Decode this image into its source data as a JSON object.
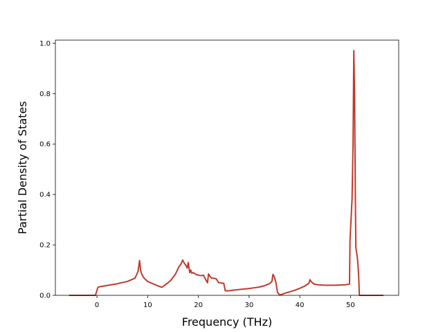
{
  "chart_data": {
    "type": "line",
    "title": "",
    "xlabel": "Frequency (THz)",
    "ylabel": "Partial Density of States",
    "xlim": [
      -8.2,
      59.5
    ],
    "ylim": [
      0,
      1.012
    ],
    "xticks": [
      0,
      10,
      20,
      30,
      40,
      50
    ],
    "yticks": [
      0.0,
      0.2,
      0.4,
      0.6,
      0.8,
      1.0
    ],
    "xtick_labels": [
      "0",
      "10",
      "20",
      "30",
      "40",
      "50"
    ],
    "ytick_labels": [
      "0.0",
      "0.2",
      "0.4",
      "0.6",
      "0.8",
      "1.0"
    ],
    "grid": false,
    "legend": "none",
    "series": [
      {
        "color": "#c0392b",
        "x": [
          -5.5,
          -0.3,
          0.0,
          0.2,
          0.5,
          2,
          4,
          6,
          7.5,
          8.1,
          8.4,
          8.6,
          8.8,
          9.3,
          10,
          11,
          12,
          12.5,
          12.8,
          13.5,
          14.5,
          15.5,
          16.2,
          16.6,
          16.9,
          17.2,
          17.5,
          17.8,
          18.0,
          18.3,
          18.5,
          18.7,
          19.0,
          19.5,
          20,
          20.5,
          21,
          21.5,
          21.8,
          22.0,
          22.3,
          22.6,
          23.0,
          23.5,
          24.0,
          24.4,
          24.6,
          25.0,
          25.3,
          25.5,
          26,
          27,
          28,
          29,
          30,
          31,
          32,
          33,
          34,
          34.5,
          34.7,
          35.0,
          35.3,
          35.6,
          35.9,
          36.2,
          37,
          38,
          39,
          40,
          41,
          41.8,
          42.0,
          42.3,
          42.8,
          43.5,
          45,
          47,
          49,
          49.8,
          49.9,
          50.1,
          50.3,
          50.5,
          50.65,
          50.8,
          50.95,
          51.05,
          51.2,
          51.4,
          51.6,
          51.75,
          52,
          53,
          56.5
        ],
        "y": [
          0.0,
          0.0,
          0.02,
          0.032,
          0.034,
          0.039,
          0.046,
          0.055,
          0.068,
          0.095,
          0.138,
          0.1,
          0.085,
          0.068,
          0.055,
          0.046,
          0.038,
          0.034,
          0.032,
          0.042,
          0.058,
          0.085,
          0.115,
          0.125,
          0.14,
          0.128,
          0.12,
          0.108,
          0.13,
          0.09,
          0.1,
          0.088,
          0.09,
          0.083,
          0.08,
          0.078,
          0.08,
          0.06,
          0.05,
          0.085,
          0.075,
          0.068,
          0.068,
          0.066,
          0.05,
          0.05,
          0.048,
          0.048,
          0.018,
          0.018,
          0.018,
          0.021,
          0.023,
          0.025,
          0.027,
          0.03,
          0.033,
          0.038,
          0.046,
          0.055,
          0.083,
          0.072,
          0.05,
          0.012,
          0.004,
          0.002,
          0.008,
          0.014,
          0.02,
          0.028,
          0.037,
          0.048,
          0.062,
          0.053,
          0.045,
          0.042,
          0.04,
          0.04,
          0.042,
          0.045,
          0.22,
          0.3,
          0.38,
          0.6,
          0.97,
          0.8,
          0.4,
          0.19,
          0.17,
          0.14,
          0.08,
          0.0,
          0.0,
          0.0,
          0.0
        ]
      }
    ]
  }
}
